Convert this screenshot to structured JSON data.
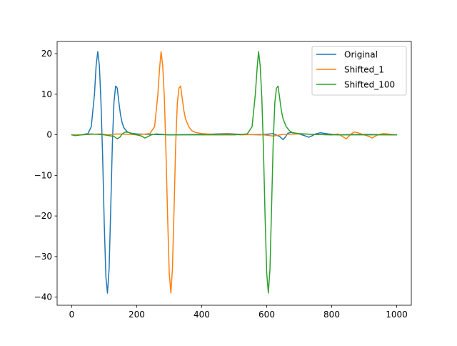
{
  "chart_data": {
    "type": "line",
    "title": "",
    "xlabel": "",
    "ylabel": "",
    "xlim": [
      -45,
      1045
    ],
    "ylim": [
      -42,
      23
    ],
    "x_ticks": [
      0,
      200,
      400,
      600,
      800,
      1000
    ],
    "y_ticks": [
      -40,
      -30,
      -20,
      -10,
      0,
      10,
      20
    ],
    "x_tick_labels": [
      "0",
      "200",
      "400",
      "600",
      "800",
      "1000"
    ],
    "y_tick_labels": [
      "−40",
      "−30",
      "−20",
      "−10",
      "0",
      "10",
      "20"
    ],
    "grid": false,
    "legend_position": "top-right",
    "series": [
      {
        "name": "Original",
        "color": "#1f77b4",
        "points": [
          [
            0,
            0
          ],
          [
            30,
            0
          ],
          [
            50,
            0.3
          ],
          [
            60,
            2
          ],
          [
            70,
            10
          ],
          [
            75,
            17
          ],
          [
            80,
            20.5
          ],
          [
            85,
            17
          ],
          [
            90,
            8
          ],
          [
            95,
            -5
          ],
          [
            100,
            -22
          ],
          [
            105,
            -35
          ],
          [
            110,
            -39
          ],
          [
            115,
            -33
          ],
          [
            120,
            -18
          ],
          [
            125,
            -2
          ],
          [
            130,
            8
          ],
          [
            135,
            12
          ],
          [
            140,
            11.5
          ],
          [
            145,
            8
          ],
          [
            150,
            5
          ],
          [
            155,
            3
          ],
          [
            160,
            1.8
          ],
          [
            170,
            0.8
          ],
          [
            180,
            0.4
          ],
          [
            200,
            0.2
          ],
          [
            240,
            0.1
          ],
          [
            300,
            0
          ],
          [
            400,
            0.1
          ],
          [
            480,
            0.3
          ],
          [
            520,
            0.1
          ],
          [
            580,
            0
          ],
          [
            620,
            0.3
          ],
          [
            640,
            -0.4
          ],
          [
            650,
            -1.2
          ],
          [
            658,
            -0.5
          ],
          [
            665,
            0.4
          ],
          [
            675,
            0.6
          ],
          [
            700,
            0.2
          ],
          [
            720,
            -0.3
          ],
          [
            730,
            -0.6
          ],
          [
            738,
            -0.3
          ],
          [
            750,
            0.2
          ],
          [
            765,
            0.5
          ],
          [
            790,
            0.2
          ],
          [
            820,
            0
          ],
          [
            900,
            0.1
          ],
          [
            1000,
            0
          ]
        ]
      },
      {
        "name": "Shifted_1",
        "color": "#ff7f0e",
        "points": [
          [
            0,
            0
          ],
          [
            30,
            0
          ],
          [
            60,
            0.1
          ],
          [
            90,
            0.2
          ],
          [
            110,
            0
          ],
          [
            140,
            0.2
          ],
          [
            180,
            0.1
          ],
          [
            200,
            0
          ],
          [
            240,
            0.3
          ],
          [
            255,
            2
          ],
          [
            265,
            10
          ],
          [
            270,
            16
          ],
          [
            275,
            20.5
          ],
          [
            280,
            17
          ],
          [
            285,
            9
          ],
          [
            290,
            -4
          ],
          [
            295,
            -20
          ],
          [
            300,
            -34
          ],
          [
            305,
            -39
          ],
          [
            310,
            -33
          ],
          [
            315,
            -18
          ],
          [
            320,
            -2
          ],
          [
            325,
            8
          ],
          [
            330,
            11.5
          ],
          [
            335,
            12
          ],
          [
            340,
            9
          ],
          [
            345,
            6
          ],
          [
            350,
            4
          ],
          [
            360,
            2
          ],
          [
            370,
            1
          ],
          [
            380,
            0.6
          ],
          [
            400,
            0.3
          ],
          [
            440,
            0.1
          ],
          [
            480,
            0.2
          ],
          [
            520,
            0
          ],
          [
            580,
            0.1
          ],
          [
            620,
            -0.3
          ],
          [
            650,
            0.1
          ],
          [
            700,
            0.2
          ],
          [
            800,
            0
          ],
          [
            820,
            0.2
          ],
          [
            835,
            -0.5
          ],
          [
            845,
            -1
          ],
          [
            852,
            -0.4
          ],
          [
            860,
            0.2
          ],
          [
            870,
            0.7
          ],
          [
            880,
            0.5
          ],
          [
            900,
            0
          ],
          [
            915,
            -0.4
          ],
          [
            925,
            -0.8
          ],
          [
            933,
            -0.4
          ],
          [
            945,
            0.1
          ],
          [
            960,
            0.3
          ],
          [
            1000,
            0
          ]
        ]
      },
      {
        "name": "Shifted_100",
        "color": "#2ca02c",
        "points": [
          [
            0,
            0
          ],
          [
            10,
            -0.2
          ],
          [
            30,
            0
          ],
          [
            60,
            0.2
          ],
          [
            100,
            0
          ],
          [
            130,
            -0.4
          ],
          [
            140,
            -1
          ],
          [
            148,
            -0.6
          ],
          [
            155,
            0.2
          ],
          [
            165,
            0.7
          ],
          [
            175,
            0.6
          ],
          [
            190,
            0.2
          ],
          [
            200,
            0
          ],
          [
            215,
            -0.3
          ],
          [
            225,
            -0.8
          ],
          [
            233,
            -0.5
          ],
          [
            245,
            0
          ],
          [
            260,
            0.2
          ],
          [
            300,
            0
          ],
          [
            400,
            0
          ],
          [
            500,
            0
          ],
          [
            540,
            0.2
          ],
          [
            555,
            2
          ],
          [
            565,
            10
          ],
          [
            570,
            16
          ],
          [
            575,
            20.5
          ],
          [
            580,
            17
          ],
          [
            585,
            9
          ],
          [
            590,
            -4
          ],
          [
            595,
            -20
          ],
          [
            600,
            -34
          ],
          [
            605,
            -39
          ],
          [
            610,
            -33
          ],
          [
            615,
            -18
          ],
          [
            620,
            -2
          ],
          [
            625,
            8
          ],
          [
            630,
            11.5
          ],
          [
            635,
            12
          ],
          [
            640,
            9
          ],
          [
            645,
            6
          ],
          [
            650,
            4
          ],
          [
            660,
            2
          ],
          [
            670,
            1
          ],
          [
            680,
            0.5
          ],
          [
            700,
            0.3
          ],
          [
            740,
            0.1
          ],
          [
            800,
            0
          ],
          [
            900,
            0
          ],
          [
            1000,
            0
          ]
        ]
      }
    ]
  }
}
